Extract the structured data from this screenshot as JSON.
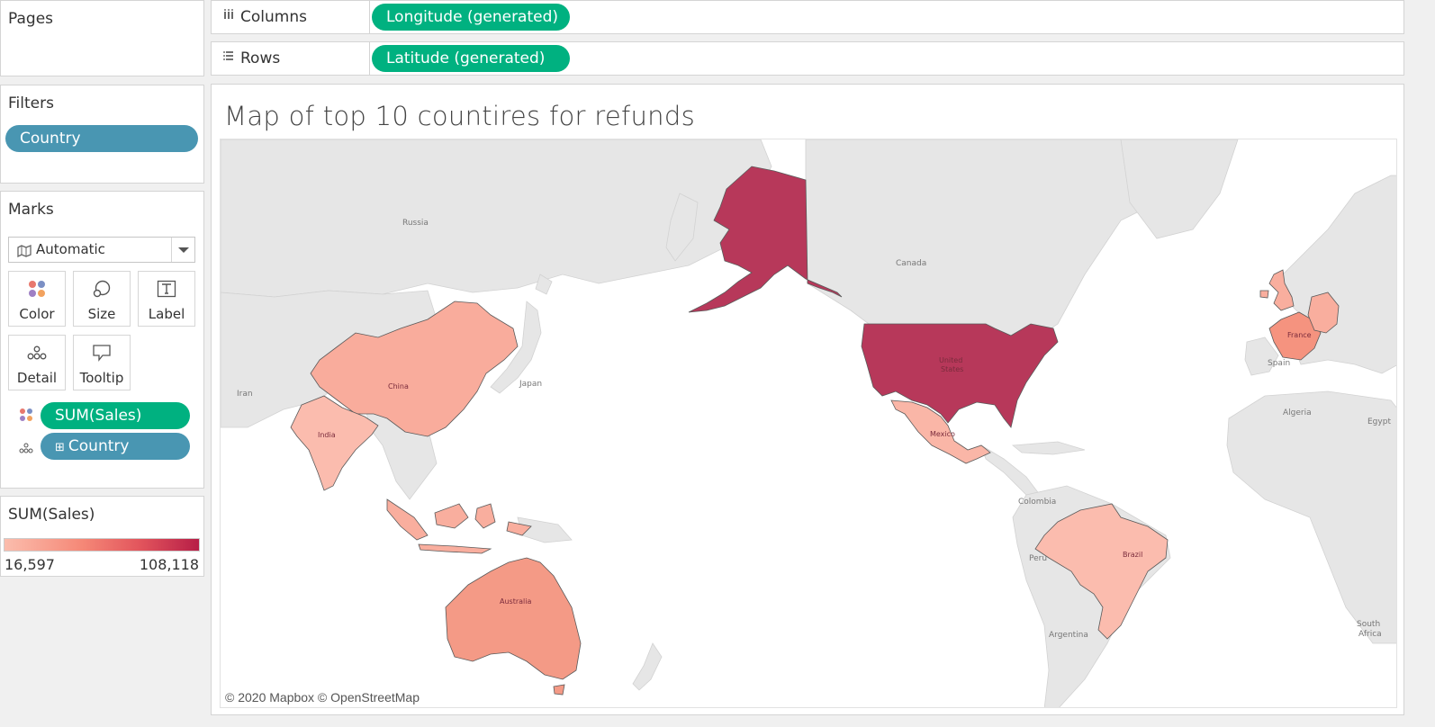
{
  "pages": {
    "title": "Pages"
  },
  "filters": {
    "title": "Filters",
    "pills": [
      {
        "label": "Country"
      }
    ]
  },
  "marks": {
    "title": "Marks",
    "mark_type": "Automatic",
    "mark_type_icon": "map-icon",
    "buttons": [
      {
        "label": "Color",
        "icon": "color-dots-icon"
      },
      {
        "label": "Size",
        "icon": "size-circles-icon"
      },
      {
        "label": "Label",
        "icon": "text-t-icon"
      },
      {
        "label": "Detail",
        "icon": "detail-dots-icon"
      },
      {
        "label": "Tooltip",
        "icon": "speech-bubble-icon"
      }
    ],
    "fields": [
      {
        "label": "SUM(Sales)",
        "encoding": "color"
      },
      {
        "label": "Country",
        "encoding": "detail",
        "prefix": "⊞"
      }
    ]
  },
  "legend": {
    "title": "SUM(Sales)",
    "min": "16,597",
    "max": "108,118",
    "colors": [
      "#fbbdad",
      "#f58877",
      "#e2545c",
      "#b71e47"
    ]
  },
  "shelves": {
    "columns": {
      "label": "Columns",
      "icon": "columns-icon",
      "pill": "Longitude (generated)"
    },
    "rows": {
      "label": "Rows",
      "icon": "rows-icon",
      "pill": "Latitude (generated)"
    }
  },
  "view": {
    "title": "Map of top 10 countires for refunds",
    "attribution": "© 2020 Mapbox © OpenStreetMap",
    "map_labels": {
      "russia": "Russia",
      "canada": "Canada",
      "iran": "Iran",
      "japan": "Japan",
      "spain": "Spain",
      "algeria": "Algeria",
      "egypt": "Egypt",
      "colombia": "Colombia",
      "peru": "Peru",
      "argentina": "Argentina",
      "south_africa_1": "South",
      "south_africa_2": "Africa",
      "china": "China",
      "india": "India",
      "australia": "Australia",
      "united_states_1": "United",
      "united_states_2": "States",
      "mexico": "Mexico",
      "brazil": "Brazil",
      "france": "France"
    },
    "countries": [
      {
        "name": "United States",
        "color": "#b7385a"
      },
      {
        "name": "Australia",
        "color": "#f49a86"
      },
      {
        "name": "France",
        "color": "#f5937f"
      },
      {
        "name": "China",
        "color": "#f9ac9c"
      },
      {
        "name": "Germany",
        "color": "#f9ae9e"
      },
      {
        "name": "United Kingdom",
        "color": "#f9ae9e"
      },
      {
        "name": "Mexico",
        "color": "#fab6a7"
      },
      {
        "name": "India",
        "color": "#fbbcae"
      },
      {
        "name": "Brazil",
        "color": "#fbbcae"
      },
      {
        "name": "Indonesia",
        "color": "#f9ae9e"
      }
    ]
  }
}
